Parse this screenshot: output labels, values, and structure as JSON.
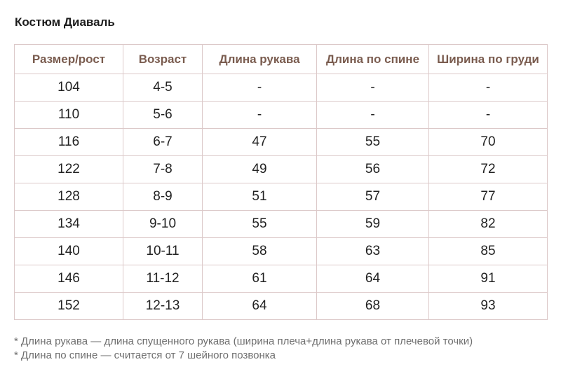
{
  "title": "Костюм Диаваль",
  "table": {
    "headers": [
      "Размер/рост",
      "Возраст",
      "Длина рукава",
      "Длина по спине",
      "Ширина по груди"
    ],
    "rows": [
      [
        "104",
        "4-5",
        "-",
        "-",
        "-"
      ],
      [
        "110",
        "5-6",
        "-",
        "-",
        "-"
      ],
      [
        "116",
        "6-7",
        "47",
        "55",
        "70"
      ],
      [
        "122",
        "7-8",
        "49",
        "56",
        "72"
      ],
      [
        "128",
        "8-9",
        "51",
        "57",
        "77"
      ],
      [
        "134",
        "9-10",
        "55",
        "59",
        "82"
      ],
      [
        "140",
        "10-11",
        "58",
        "63",
        "85"
      ],
      [
        "146",
        "11-12",
        "61",
        "64",
        "91"
      ],
      [
        "152",
        "12-13",
        "64",
        "68",
        "93"
      ]
    ]
  },
  "notes": [
    "* Длина рукава — длина спущенного рукава (ширина плеча+длина рукава от плечевой точки)",
    "* Длина по спине — считается от 7 шейного позвонка"
  ],
  "colors": {
    "header_text": "#7a5c4f",
    "border": "#dcc9c9",
    "note_text": "#6e6e6e"
  }
}
